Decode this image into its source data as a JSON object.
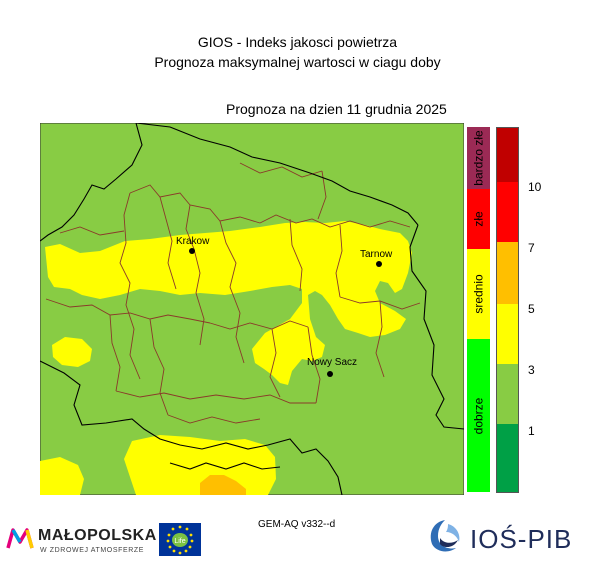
{
  "header": {
    "title": "GIOS - Indeks jakosci powietrza",
    "subtitle": "Prognoza maksymalnej wartosci w ciagu doby",
    "date_line": "Prognoza na dzien  11 grudnia 2025"
  },
  "legend": {
    "categories": [
      {
        "label": "bardzo złe",
        "color": "#9b2a55"
      },
      {
        "label": "złe",
        "color": "#ff0000"
      },
      {
        "label": "srednio",
        "color": "#ffff00"
      },
      {
        "label": "dobrze",
        "color": "#00ff00"
      }
    ],
    "scale_colors": [
      "#c00000",
      "#ff0000",
      "#ff6600",
      "#ffbf00",
      "#ffff00",
      "#88cc44",
      "#00a046"
    ],
    "ticks": [
      "10",
      "7",
      "5",
      "3",
      "1"
    ]
  },
  "map": {
    "background_color": "#88cc44",
    "region_colors": {
      "moderate": "#ffff00",
      "elevated": "#ffbf00"
    },
    "cities": [
      "Krakow",
      "Tarnow",
      "Nowy Sacz"
    ]
  },
  "footer": {
    "model": "GEM-AQ v332--d",
    "logo_left_name": "MAŁOPOLSKA",
    "logo_left_tagline": "W ZDROWEJ ATMOSFERZE",
    "logo_right_name": "IOŚ-PIB",
    "eu_logo_text": "Life"
  }
}
